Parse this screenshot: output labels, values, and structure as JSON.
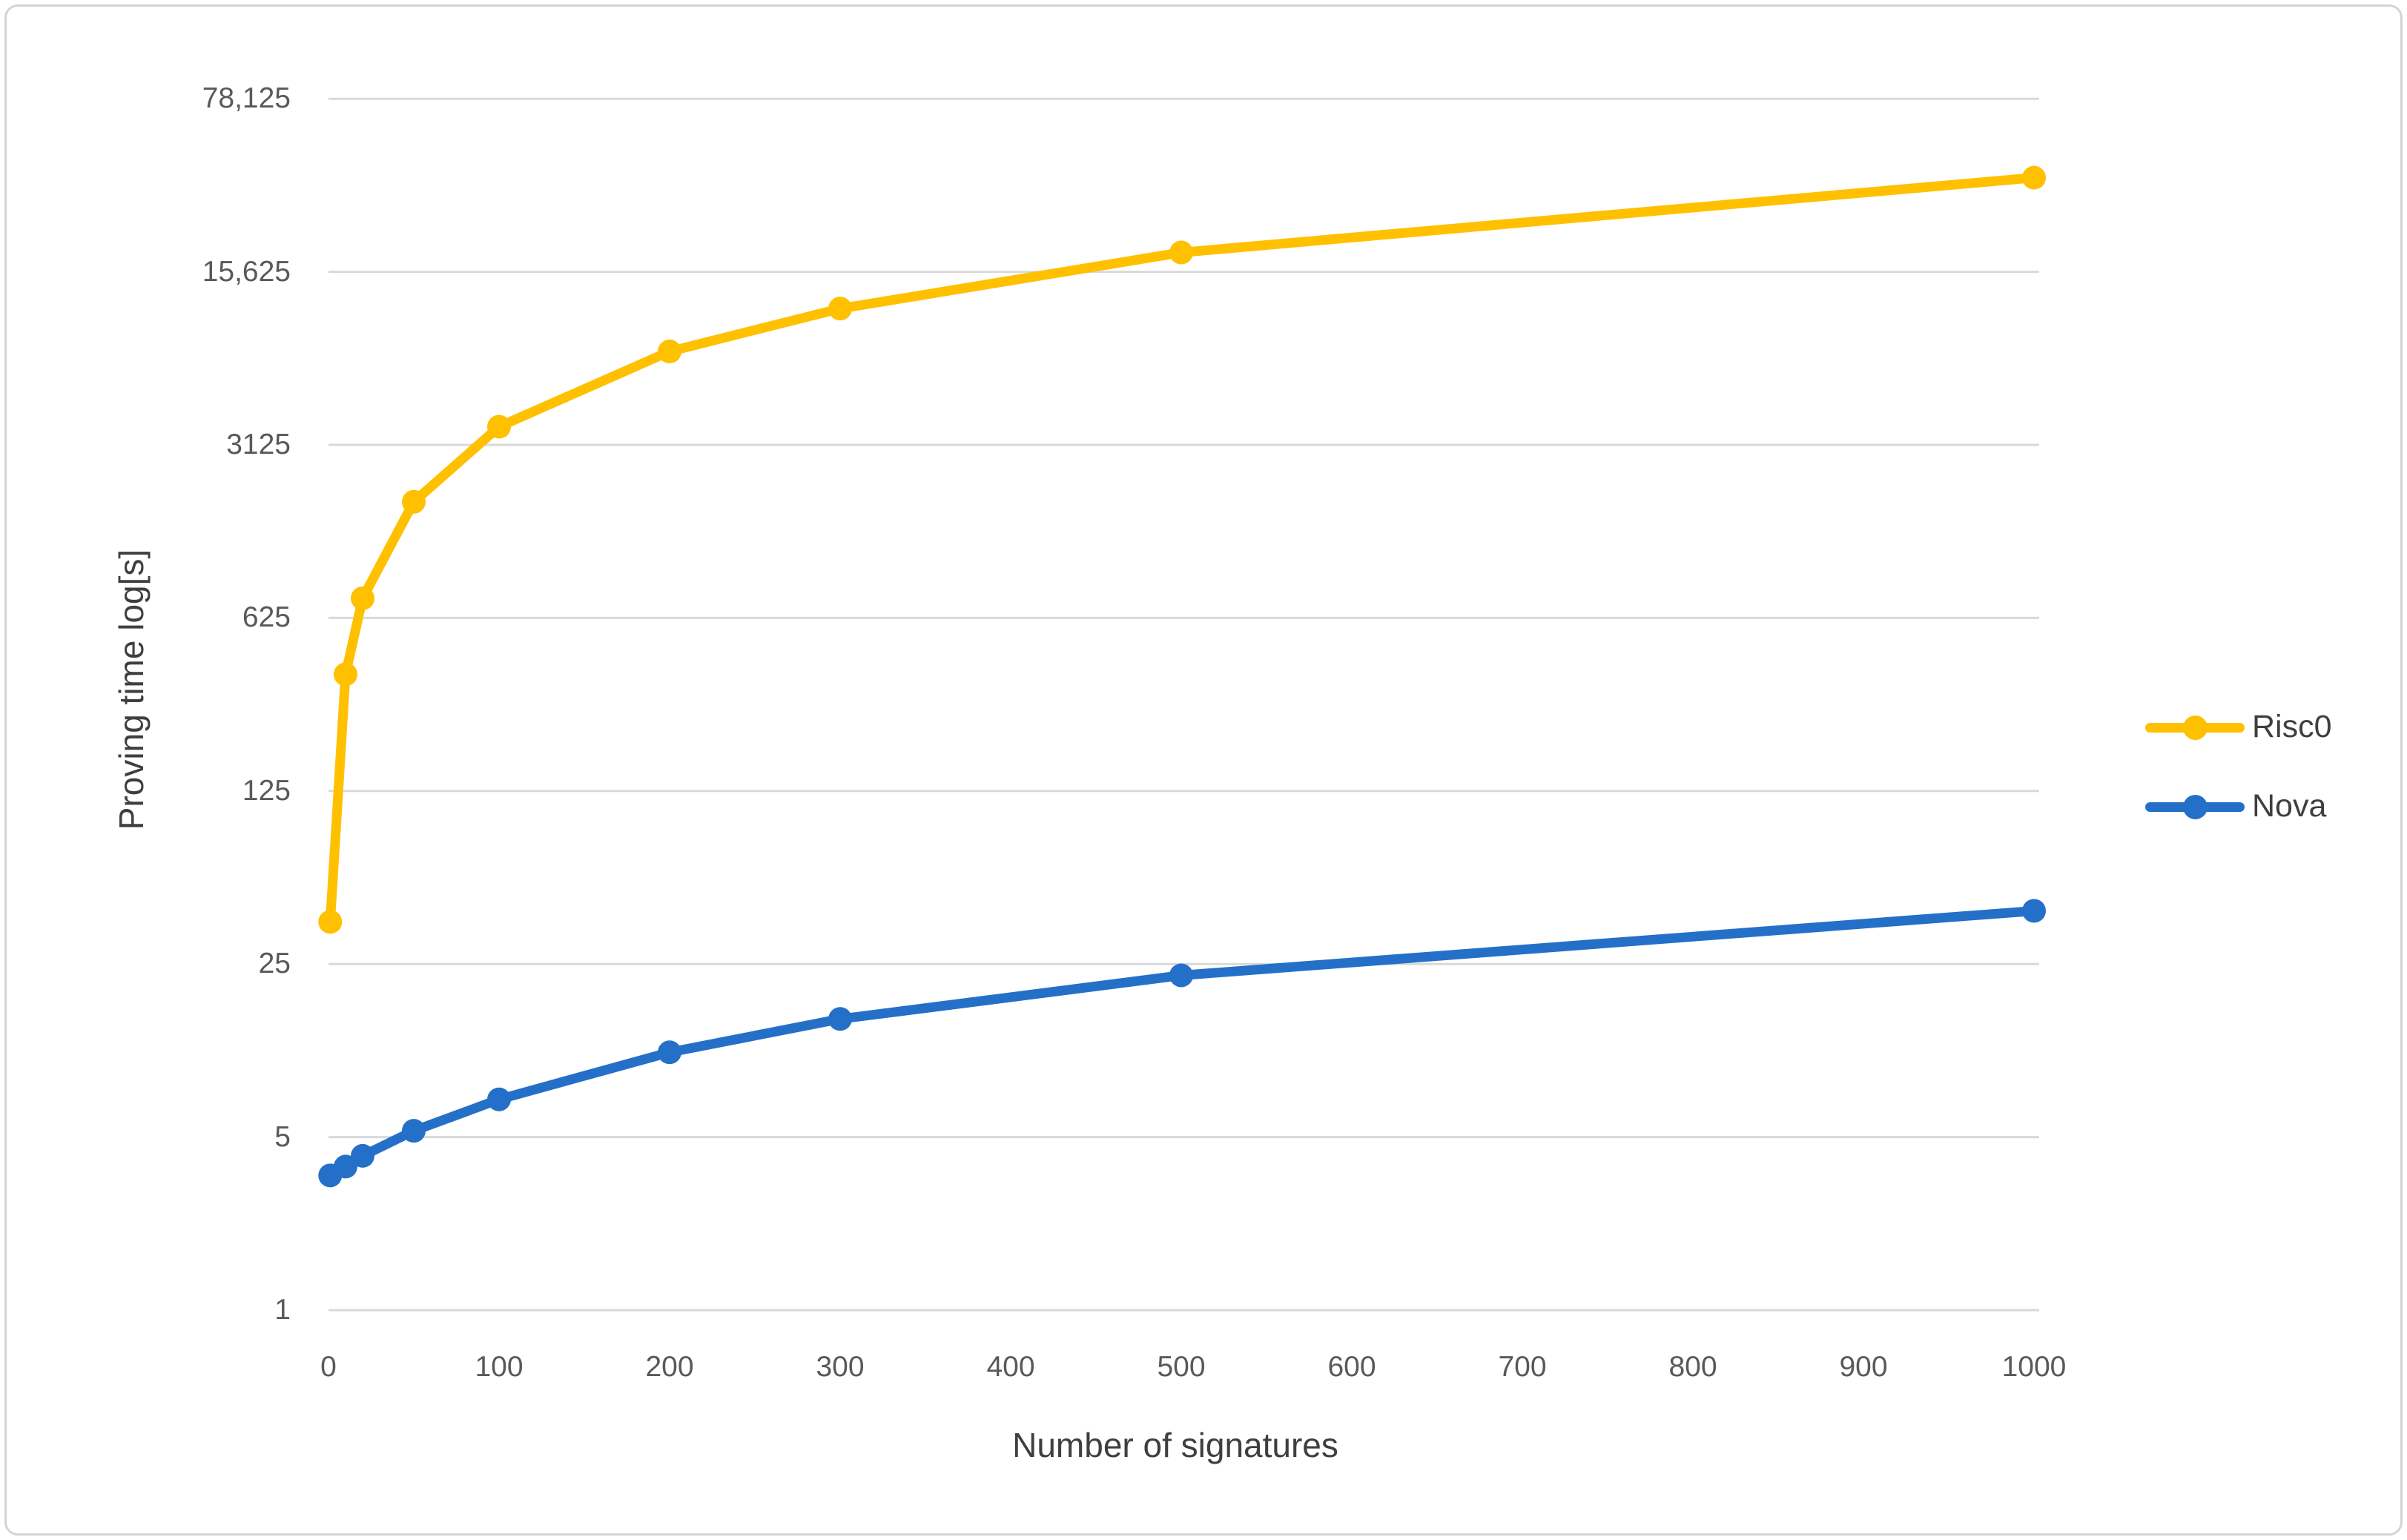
{
  "chart_data": {
    "type": "line",
    "title": "",
    "xlabel": "Number of signatures",
    "ylabel": "Proving time log[s]",
    "x_axis": {
      "min": 0,
      "max": 1000,
      "ticks": [
        0,
        100,
        200,
        300,
        400,
        500,
        600,
        700,
        800,
        900,
        1000
      ]
    },
    "y_axis": {
      "scale": "log",
      "log_base": 5,
      "min": 1,
      "max": 78125,
      "ticks": [
        {
          "value": 1,
          "label": "1"
        },
        {
          "value": 5,
          "label": "5"
        },
        {
          "value": 25,
          "label": "25"
        },
        {
          "value": 125,
          "label": "125"
        },
        {
          "value": 625,
          "label": "625"
        },
        {
          "value": 3125,
          "label": "3125"
        },
        {
          "value": 15625,
          "label": "15,625"
        },
        {
          "value": 78125,
          "label": "78,125"
        }
      ]
    },
    "grid": "horizontal-only",
    "legend_position": "right",
    "series": [
      {
        "name": "Risc0",
        "color": "#FFC000",
        "marker": "circle",
        "points": [
          {
            "x": 1,
            "y": 37
          },
          {
            "x": 10,
            "y": 370
          },
          {
            "x": 20,
            "y": 750
          },
          {
            "x": 50,
            "y": 1840
          },
          {
            "x": 100,
            "y": 3700
          },
          {
            "x": 200,
            "y": 7450
          },
          {
            "x": 300,
            "y": 11100
          },
          {
            "x": 500,
            "y": 18700
          },
          {
            "x": 1000,
            "y": 37500
          }
        ]
      },
      {
        "name": "Nova",
        "color": "#2470C8",
        "marker": "circle",
        "points": [
          {
            "x": 1,
            "y": 3.5
          },
          {
            "x": 10,
            "y": 3.8
          },
          {
            "x": 20,
            "y": 4.2
          },
          {
            "x": 50,
            "y": 5.3
          },
          {
            "x": 100,
            "y": 7.1
          },
          {
            "x": 200,
            "y": 11
          },
          {
            "x": 300,
            "y": 15
          },
          {
            "x": 500,
            "y": 22.5
          },
          {
            "x": 1000,
            "y": 41
          }
        ]
      }
    ]
  },
  "styles": {
    "background": "#FFFFFF",
    "border_color": "#D4D4D4",
    "grid_color": "#D9D9D9",
    "tick_text_color": "#595959",
    "axis_title_color": "#3F3F3F",
    "legend_text_color": "#3F3F3F"
  }
}
